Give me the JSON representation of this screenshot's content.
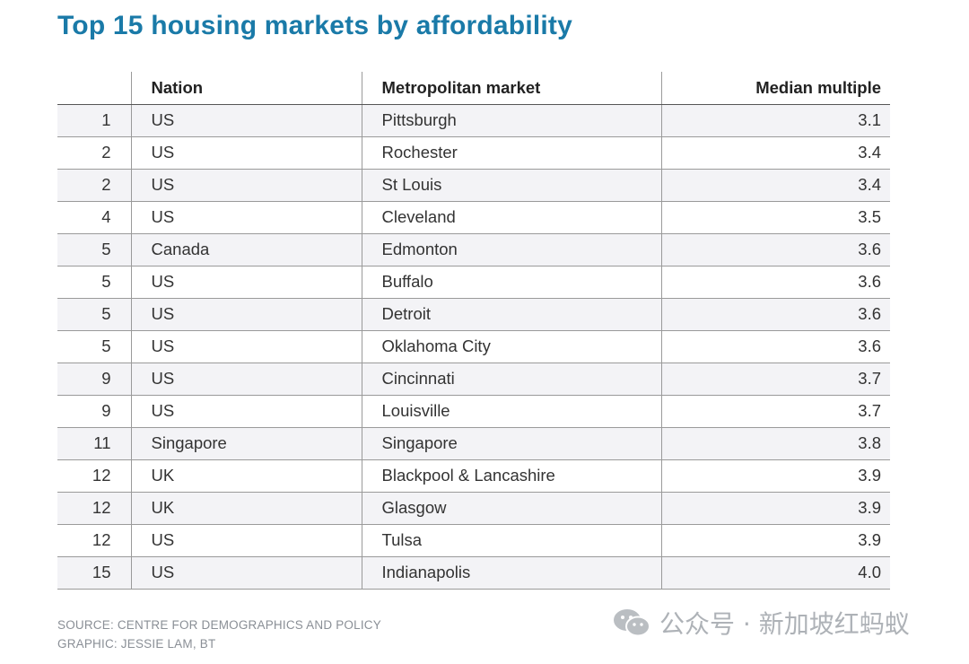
{
  "title": "Top 15 housing markets by affordability",
  "table": {
    "headers": [
      "",
      "Nation",
      "Metropolitan market",
      "Median multiple"
    ],
    "rows": [
      {
        "rank": "1",
        "nation": "US",
        "market": "Pittsburgh",
        "multiple": "3.1"
      },
      {
        "rank": "2",
        "nation": "US",
        "market": "Rochester",
        "multiple": "3.4"
      },
      {
        "rank": "2",
        "nation": "US",
        "market": "St Louis",
        "multiple": "3.4"
      },
      {
        "rank": "4",
        "nation": "US",
        "market": "Cleveland",
        "multiple": "3.5"
      },
      {
        "rank": "5",
        "nation": "Canada",
        "market": "Edmonton",
        "multiple": "3.6"
      },
      {
        "rank": "5",
        "nation": "US",
        "market": "Buffalo",
        "multiple": "3.6"
      },
      {
        "rank": "5",
        "nation": "US",
        "market": "Detroit",
        "multiple": "3.6"
      },
      {
        "rank": "5",
        "nation": "US",
        "market": "Oklahoma City",
        "multiple": "3.6"
      },
      {
        "rank": "9",
        "nation": "US",
        "market": "Cincinnati",
        "multiple": "3.7"
      },
      {
        "rank": "9",
        "nation": "US",
        "market": "Louisville",
        "multiple": "3.7"
      },
      {
        "rank": "11",
        "nation": "Singapore",
        "market": "Singapore",
        "multiple": "3.8"
      },
      {
        "rank": "12",
        "nation": "UK",
        "market": "Blackpool & Lancashire",
        "multiple": "3.9"
      },
      {
        "rank": "12",
        "nation": "UK",
        "market": "Glasgow",
        "multiple": "3.9"
      },
      {
        "rank": "12",
        "nation": "US",
        "market": "Tulsa",
        "multiple": "3.9"
      },
      {
        "rank": "15",
        "nation": "US",
        "market": "Indianapolis",
        "multiple": "4.0"
      }
    ]
  },
  "footer": {
    "source": "SOURCE: CENTRE FOR DEMOGRAPHICS AND POLICY",
    "graphic": "GRAPHIC: JESSIE LAM, BT"
  },
  "watermark": {
    "icon": "wechat-icon",
    "text": "公众号 · 新加坡红蚂蚁"
  },
  "colors": {
    "title": "#1a7aa8",
    "stripe": "#f3f3f6",
    "footer": "#8a8f96"
  }
}
